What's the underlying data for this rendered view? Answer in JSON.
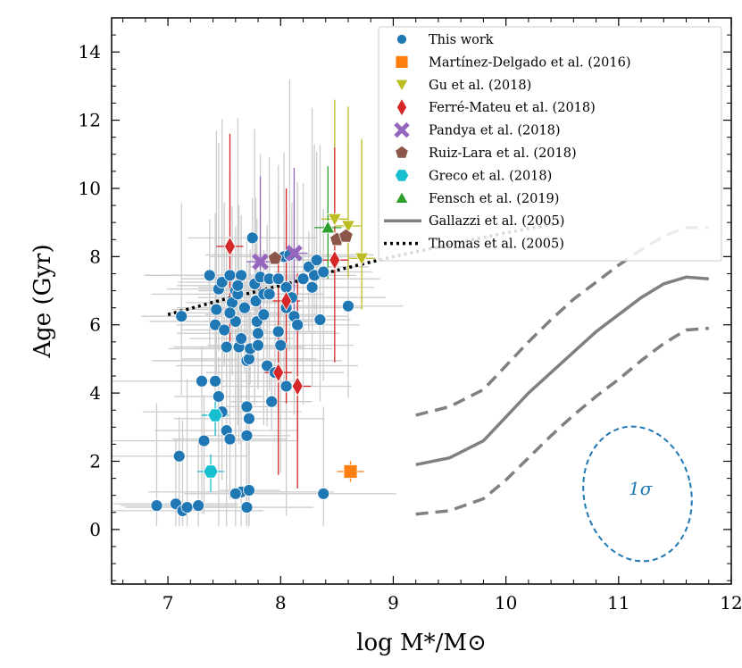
{
  "chart_data": {
    "type": "scatter",
    "xlabel": "log M*/M⊙",
    "ylabel": "Age (Gyr)",
    "xlim": [
      6.5,
      12
    ],
    "ylim": [
      -1.6,
      15
    ],
    "xticks": [
      7,
      8,
      9,
      10,
      11,
      12
    ],
    "yticks": [
      0,
      2,
      4,
      6,
      8,
      10,
      12,
      14
    ],
    "colors": {
      "this_work": "#1f77b4",
      "martinez": "#ff7f0e",
      "gu": "#bcbd22",
      "ferre": "#d62728",
      "pandya": "#9467bd",
      "ruiz": "#8c564b",
      "greco": "#17becf",
      "fensch": "#2ca02c",
      "gallazzi": "#808080",
      "errorbar": "#cccccc"
    },
    "legend": [
      {
        "key": "this_work",
        "label": "This work",
        "marker": "circle"
      },
      {
        "key": "martinez",
        "label": "Martínez-Delgado et al. (2016)",
        "marker": "square"
      },
      {
        "key": "gu",
        "label": "Gu et al. (2018)",
        "marker": "triangle-down"
      },
      {
        "key": "ferre",
        "label": "Ferré-Mateu et al. (2018)",
        "marker": "diamond"
      },
      {
        "key": "pandya",
        "label": "Pandya et al. (2018)",
        "marker": "x"
      },
      {
        "key": "ruiz",
        "label": "Ruiz-Lara et al. (2018)",
        "marker": "pentagon"
      },
      {
        "key": "greco",
        "label": "Greco et al. (2018)",
        "marker": "hexagon"
      },
      {
        "key": "fensch",
        "label": "Fensch et al. (2019)",
        "marker": "triangle-up"
      },
      {
        "key": "gallazzi",
        "label": "Gallazzi et al. (2005)",
        "marker": "line-solid"
      },
      {
        "key": "thomas",
        "label": "Thomas et al. (2005)",
        "marker": "line-dotted"
      }
    ],
    "annotation": "1σ",
    "series": {
      "this_work": [
        [
          6.9,
          0.7
        ],
        [
          7.07,
          0.75
        ],
        [
          7.1,
          2.15
        ],
        [
          7.13,
          0.55
        ],
        [
          7.17,
          0.65
        ],
        [
          7.27,
          0.7
        ],
        [
          7.12,
          6.25
        ],
        [
          7.3,
          4.35
        ],
        [
          7.32,
          2.6
        ],
        [
          7.37,
          7.45
        ],
        [
          7.42,
          4.35
        ],
        [
          7.43,
          6.45
        ],
        [
          7.42,
          6.0
        ],
        [
          7.45,
          7.05
        ],
        [
          7.45,
          3.9
        ],
        [
          7.48,
          7.25
        ],
        [
          7.48,
          3.45
        ],
        [
          7.5,
          5.85
        ],
        [
          7.52,
          5.35
        ],
        [
          7.52,
          2.9
        ],
        [
          7.55,
          2.65
        ],
        [
          7.55,
          7.45
        ],
        [
          7.57,
          6.65
        ],
        [
          7.6,
          7.0
        ],
        [
          7.6,
          6.1
        ],
        [
          7.62,
          6.9
        ],
        [
          7.63,
          5.35
        ],
        [
          7.65,
          5.6
        ],
        [
          7.65,
          7.45
        ],
        [
          7.65,
          1.1
        ],
        [
          7.68,
          6.5
        ],
        [
          7.7,
          4.95
        ],
        [
          7.72,
          5.0
        ],
        [
          7.73,
          5.3
        ],
        [
          7.7,
          3.6
        ],
        [
          7.72,
          3.25
        ],
        [
          7.7,
          2.75
        ],
        [
          7.72,
          1.15
        ],
        [
          7.75,
          8.55
        ],
        [
          7.77,
          7.2
        ],
        [
          7.78,
          6.7
        ],
        [
          7.79,
          6.1
        ],
        [
          7.8,
          5.75
        ],
        [
          7.8,
          5.4
        ],
        [
          7.82,
          7.4
        ],
        [
          7.85,
          6.9
        ],
        [
          7.85,
          6.3
        ],
        [
          7.88,
          4.8
        ],
        [
          7.9,
          6.9
        ],
        [
          7.9,
          7.35
        ],
        [
          7.92,
          3.75
        ],
        [
          7.95,
          4.6
        ],
        [
          7.98,
          7.35
        ],
        [
          7.98,
          5.8
        ],
        [
          8.0,
          5.4
        ],
        [
          8.03,
          8.0
        ],
        [
          8.05,
          7.1
        ],
        [
          8.05,
          6.5
        ],
        [
          8.05,
          4.2
        ],
        [
          8.08,
          8.05
        ],
        [
          8.1,
          6.8
        ],
        [
          8.12,
          6.25
        ],
        [
          8.15,
          6.0
        ],
        [
          8.2,
          7.35
        ],
        [
          8.25,
          7.7
        ],
        [
          8.28,
          7.1
        ],
        [
          8.3,
          7.45
        ],
        [
          8.32,
          7.9
        ],
        [
          8.35,
          6.15
        ],
        [
          8.38,
          1.05
        ],
        [
          8.38,
          7.55
        ],
        [
          8.6,
          6.55
        ],
        [
          7.6,
          1.05
        ],
        [
          7.7,
          0.65
        ],
        [
          7.62,
          7.15
        ],
        [
          7.55,
          6.35
        ]
      ],
      "martinez": [
        [
          8.62,
          1.7
        ]
      ],
      "gu": [
        [
          8.48,
          9.1
        ],
        [
          8.6,
          8.9
        ],
        [
          8.72,
          7.95
        ]
      ],
      "ferre": [
        [
          7.55,
          8.3
        ],
        [
          7.98,
          4.6
        ],
        [
          8.05,
          6.7
        ],
        [
          8.15,
          4.2
        ],
        [
          8.48,
          7.9
        ]
      ],
      "pandya": [
        [
          7.82,
          7.85
        ],
        [
          8.12,
          8.1
        ]
      ],
      "ruiz": [
        [
          7.95,
          7.95
        ],
        [
          8.5,
          8.5
        ],
        [
          8.58,
          8.6
        ]
      ],
      "greco": [
        [
          7.38,
          1.7
        ],
        [
          7.42,
          3.35
        ]
      ],
      "fensch": [
        [
          8.42,
          8.85
        ]
      ],
      "gallazzi_median": [
        [
          9.2,
          1.9
        ],
        [
          9.5,
          2.1
        ],
        [
          9.8,
          2.6
        ],
        [
          10.0,
          3.3
        ],
        [
          10.2,
          4.0
        ],
        [
          10.4,
          4.6
        ],
        [
          10.6,
          5.2
        ],
        [
          10.8,
          5.8
        ],
        [
          11.0,
          6.3
        ],
        [
          11.2,
          6.8
        ],
        [
          11.4,
          7.2
        ],
        [
          11.6,
          7.4
        ],
        [
          11.8,
          7.35
        ]
      ],
      "gallazzi_lower": [
        [
          9.2,
          0.45
        ],
        [
          9.5,
          0.55
        ],
        [
          9.8,
          0.9
        ],
        [
          10.0,
          1.45
        ],
        [
          10.2,
          2.1
        ],
        [
          10.4,
          2.75
        ],
        [
          10.6,
          3.35
        ],
        [
          10.8,
          3.9
        ],
        [
          11.0,
          4.4
        ],
        [
          11.2,
          4.95
        ],
        [
          11.4,
          5.45
        ],
        [
          11.6,
          5.85
        ],
        [
          11.8,
          5.9
        ]
      ],
      "gallazzi_upper": [
        [
          9.2,
          3.35
        ],
        [
          9.5,
          3.6
        ],
        [
          9.8,
          4.1
        ],
        [
          10.0,
          4.8
        ],
        [
          10.2,
          5.5
        ],
        [
          10.4,
          6.15
        ],
        [
          10.6,
          6.75
        ],
        [
          10.8,
          7.25
        ],
        [
          11.0,
          7.75
        ],
        [
          11.2,
          8.2
        ],
        [
          11.4,
          8.6
        ],
        [
          11.6,
          8.85
        ],
        [
          11.8,
          8.85
        ]
      ],
      "thomas": [
        [
          7.0,
          6.3
        ],
        [
          7.5,
          6.75
        ],
        [
          8.0,
          7.15
        ],
        [
          8.5,
          7.6
        ],
        [
          9.0,
          8.0
        ],
        [
          9.5,
          8.35
        ],
        [
          10.0,
          8.7
        ],
        [
          10.5,
          9.0
        ]
      ]
    }
  }
}
